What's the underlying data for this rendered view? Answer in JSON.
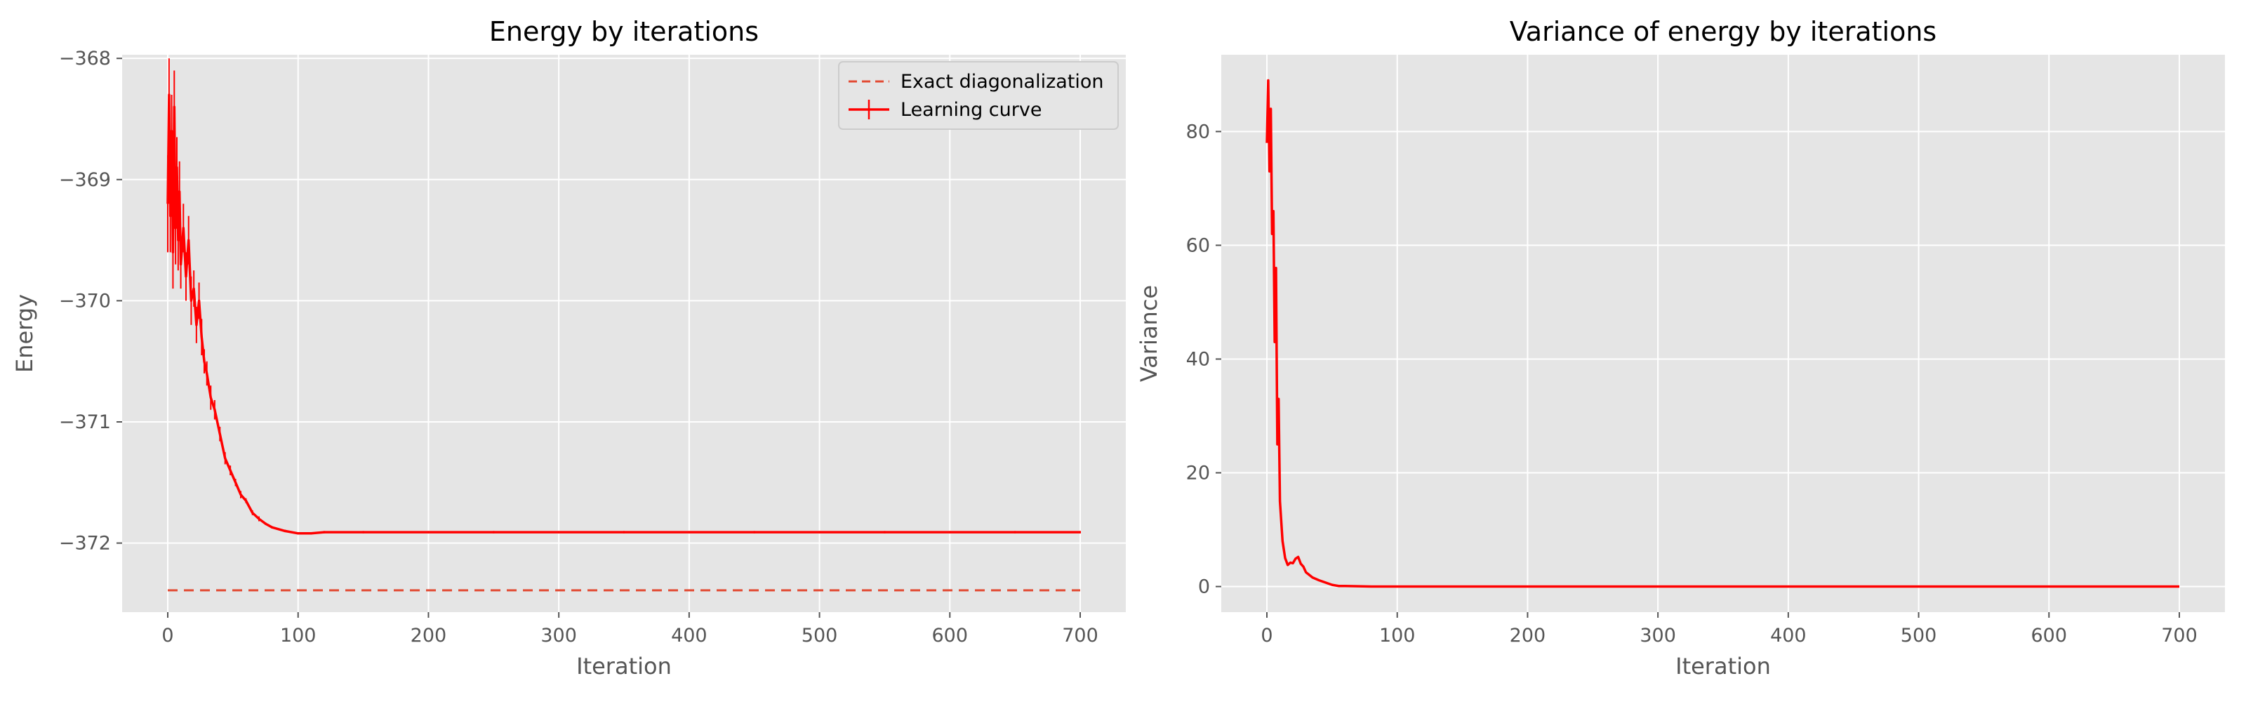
{
  "colors": {
    "background": "#E5E5E5",
    "grid": "#FFFFFF",
    "curve": "#FF0000",
    "exact": "#E24A33",
    "tick_text": "#555555"
  },
  "chart_data": [
    {
      "type": "line",
      "title": "Energy by iterations",
      "xlabel": "Iteration",
      "ylabel": "Energy",
      "xlim": [
        -35,
        735
      ],
      "ylim": [
        -372.57,
        -367.97
      ],
      "xticks": [
        0,
        100,
        200,
        300,
        400,
        500,
        600,
        700
      ],
      "xtick_labels": [
        "0",
        "100",
        "200",
        "300",
        "400",
        "500",
        "600",
        "700"
      ],
      "yticks": [
        -368,
        -369,
        -370,
        -371,
        -372
      ],
      "ytick_labels": [
        "−368",
        "−369",
        "−370",
        "−371",
        "−372"
      ],
      "grid": true,
      "legend": {
        "placement": "top-right",
        "entries": [
          "Exact diagonalization",
          "Learning curve"
        ]
      },
      "series": [
        {
          "name": "Exact diagonalization",
          "style": "dashed",
          "x": [
            0,
            700
          ],
          "y": [
            -372.39,
            -372.39
          ]
        },
        {
          "name": "Learning curve",
          "style": "solid-with-errorbars",
          "x": [
            0,
            1,
            2,
            3,
            4,
            5,
            6,
            7,
            8,
            9,
            10,
            12,
            14,
            16,
            18,
            20,
            22,
            24,
            26,
            28,
            30,
            33,
            36,
            40,
            44,
            48,
            52,
            56,
            60,
            65,
            70,
            75,
            80,
            90,
            100,
            110,
            120,
            150,
            200,
            250,
            300,
            350,
            400,
            450,
            500,
            550,
            600,
            650,
            700
          ],
          "y": [
            -369.2,
            -368.3,
            -369.3,
            -368.6,
            -369.6,
            -368.4,
            -369.4,
            -368.9,
            -369.5,
            -369.1,
            -369.7,
            -369.4,
            -369.8,
            -369.5,
            -370.0,
            -369.9,
            -370.2,
            -370.0,
            -370.3,
            -370.5,
            -370.6,
            -370.8,
            -370.9,
            -371.1,
            -371.3,
            -371.4,
            -371.5,
            -371.6,
            -371.65,
            -371.75,
            -371.8,
            -371.84,
            -371.87,
            -371.9,
            -371.92,
            -371.92,
            -371.91,
            -371.91,
            -371.91,
            -371.91,
            -371.91,
            -371.91,
            -371.91,
            -371.91,
            -371.91,
            -371.91,
            -371.91,
            -371.91,
            -371.91
          ],
          "err": [
            0.4,
            0.3,
            0.3,
            0.3,
            0.3,
            0.3,
            0.3,
            0.25,
            0.25,
            0.25,
            0.2,
            0.2,
            0.2,
            0.2,
            0.2,
            0.15,
            0.15,
            0.15,
            0.15,
            0.1,
            0.1,
            0.1,
            0.08,
            0.06,
            0.05,
            0.04,
            0.03,
            0.03,
            0.02,
            0.02,
            0.02,
            0.01,
            0.01,
            0.01,
            0.01,
            0.01,
            0.01,
            0.01,
            0.01,
            0.01,
            0.01,
            0.01,
            0.01,
            0.01,
            0.01,
            0.01,
            0.01,
            0.01,
            0.01
          ]
        }
      ]
    },
    {
      "type": "line",
      "title": "Variance of energy by iterations",
      "xlabel": "Iteration",
      "ylabel": "Variance",
      "xlim": [
        -35,
        735
      ],
      "ylim": [
        -4.5,
        93.5
      ],
      "xticks": [
        0,
        100,
        200,
        300,
        400,
        500,
        600,
        700
      ],
      "xtick_labels": [
        "0",
        "100",
        "200",
        "300",
        "400",
        "500",
        "600",
        "700"
      ],
      "yticks": [
        0,
        20,
        40,
        60,
        80
      ],
      "ytick_labels": [
        "0",
        "20",
        "40",
        "60",
        "80"
      ],
      "grid": true,
      "series": [
        {
          "style": "solid",
          "x": [
            0,
            1,
            2,
            3,
            4,
            5,
            6,
            7,
            8,
            9,
            10,
            12,
            14,
            16,
            18,
            20,
            22,
            24,
            26,
            28,
            30,
            35,
            40,
            45,
            50,
            55,
            60,
            70,
            80,
            100,
            150,
            200,
            300,
            400,
            500,
            600,
            700
          ],
          "y": [
            78,
            89,
            73,
            84,
            62,
            66,
            43,
            56,
            25,
            33,
            15,
            8,
            5,
            3.8,
            4.2,
            4.1,
            4.9,
            5.2,
            4.0,
            3.5,
            2.5,
            1.6,
            1.1,
            0.7,
            0.3,
            0.1,
            0.1,
            0.05,
            0,
            0,
            0,
            0,
            0,
            0,
            0,
            0,
            0
          ]
        }
      ]
    }
  ]
}
